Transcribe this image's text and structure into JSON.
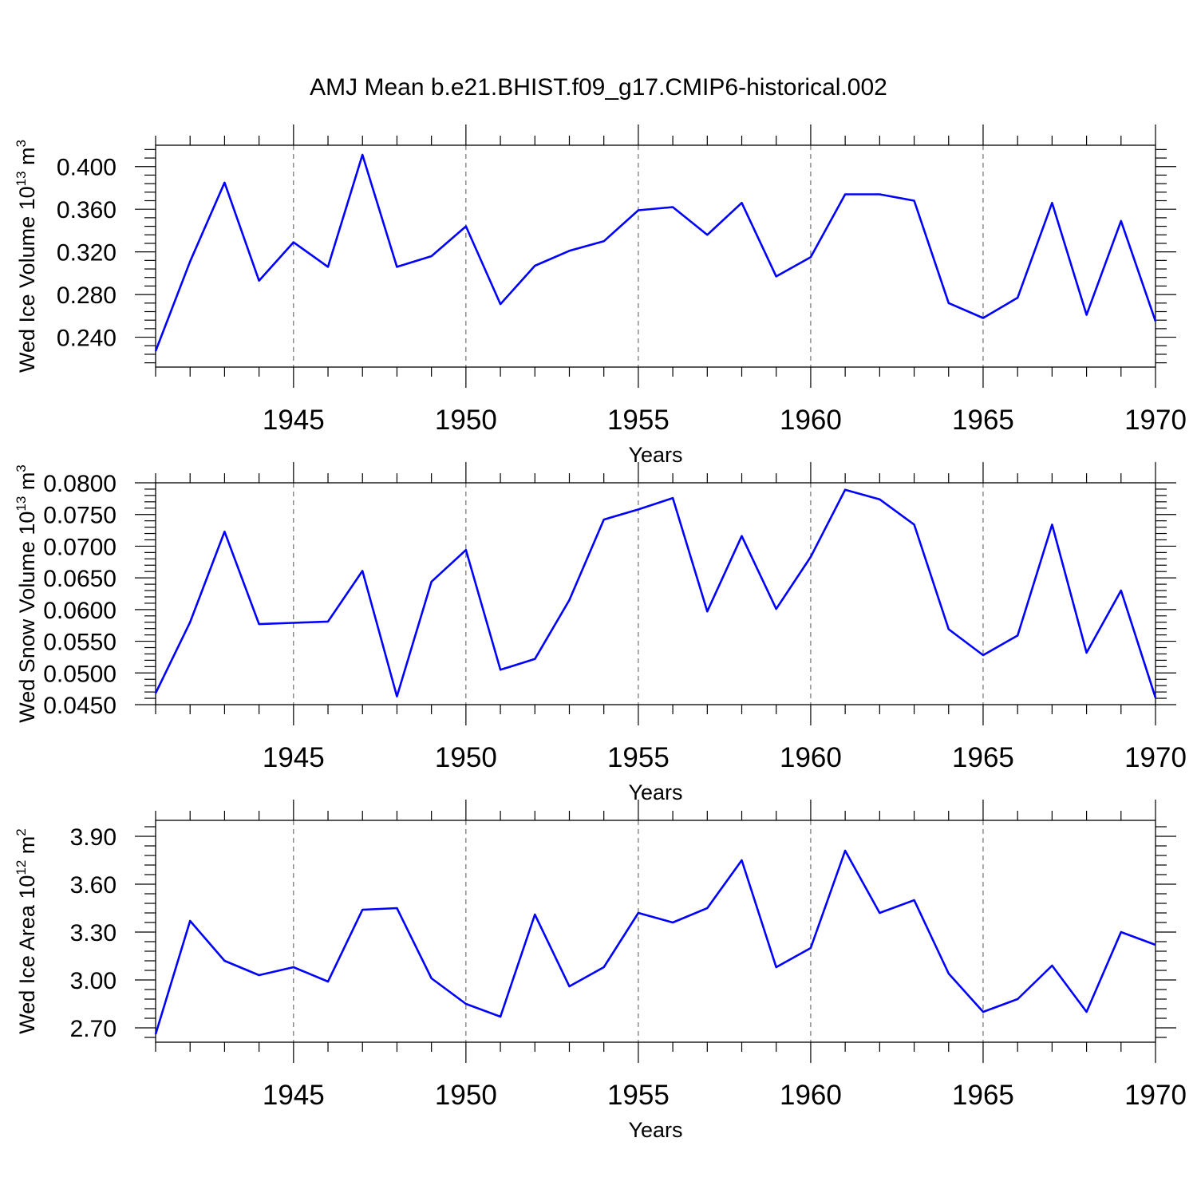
{
  "figure_title": "AMJ Mean b.e21.BHIST.f09_g17.CMIP6-historical.002",
  "colors": {
    "series": "#0000ff",
    "axis": "#000000",
    "grid": "#555555"
  },
  "chart_data": [
    {
      "type": "line",
      "title": "AMJ Mean b.e21.BHIST.f09_g17.CMIP6-historical.002",
      "xlabel": "Years",
      "ylabel_main": "Wed Ice Volume 10",
      "ylabel_exp": "13",
      "ylabel_unit": " m",
      "ylabel_unit_exp": "3",
      "xlim": [
        1941,
        1970
      ],
      "ylim": [
        0.212,
        0.42
      ],
      "xticks": [
        1945,
        1950,
        1955,
        1960,
        1965,
        1970
      ],
      "xtick_labels": [
        "1945",
        "1950",
        "1955",
        "1960",
        "1965",
        "1970"
      ],
      "yticks": [
        0.24,
        0.28,
        0.32,
        0.36,
        0.4
      ],
      "ytick_labels": [
        "0.240",
        "0.280",
        "0.320",
        "0.360",
        "0.400"
      ],
      "grid": "vertical dashed at major x ticks",
      "series": [
        {
          "name": "Wed Ice Volume",
          "x": [
            1941,
            1942,
            1943,
            1944,
            1945,
            1946,
            1947,
            1948,
            1949,
            1950,
            1951,
            1952,
            1953,
            1954,
            1955,
            1956,
            1957,
            1958,
            1959,
            1960,
            1961,
            1962,
            1963,
            1964,
            1965,
            1966,
            1967,
            1968,
            1969,
            1970
          ],
          "values": [
            0.227,
            0.311,
            0.385,
            0.293,
            0.329,
            0.306,
            0.411,
            0.306,
            0.316,
            0.344,
            0.271,
            0.307,
            0.321,
            0.33,
            0.359,
            0.362,
            0.336,
            0.366,
            0.297,
            0.315,
            0.374,
            0.374,
            0.368,
            0.272,
            0.258,
            0.277,
            0.366,
            0.261,
            0.349,
            0.255
          ]
        }
      ]
    },
    {
      "type": "line",
      "title": "",
      "xlabel": "Years",
      "ylabel_main": "Wed Snow Volume 10",
      "ylabel_exp": "13",
      "ylabel_unit": " m",
      "ylabel_unit_exp": "3",
      "xlim": [
        1941,
        1970
      ],
      "ylim": [
        0.045,
        0.08
      ],
      "xticks": [
        1945,
        1950,
        1955,
        1960,
        1965,
        1970
      ],
      "xtick_labels": [
        "1945",
        "1950",
        "1955",
        "1960",
        "1965",
        "1970"
      ],
      "yticks": [
        0.045,
        0.05,
        0.055,
        0.06,
        0.065,
        0.07,
        0.075,
        0.08
      ],
      "ytick_labels": [
        "0.0450",
        "0.0500",
        "0.0550",
        "0.0600",
        "0.0650",
        "0.0700",
        "0.0750",
        "0.0800"
      ],
      "grid": "vertical dashed at major x ticks",
      "series": [
        {
          "name": "Wed Snow Volume",
          "x": [
            1941,
            1942,
            1943,
            1944,
            1945,
            1946,
            1947,
            1948,
            1949,
            1950,
            1951,
            1952,
            1953,
            1954,
            1955,
            1956,
            1957,
            1958,
            1959,
            1960,
            1961,
            1962,
            1963,
            1964,
            1965,
            1966,
            1967,
            1968,
            1969,
            1970
          ],
          "values": [
            0.0468,
            0.058,
            0.0723,
            0.0577,
            0.0579,
            0.0581,
            0.0661,
            0.0463,
            0.0644,
            0.0694,
            0.0505,
            0.0522,
            0.0615,
            0.0742,
            0.0758,
            0.0776,
            0.0597,
            0.0716,
            0.0601,
            0.0683,
            0.0789,
            0.0774,
            0.0734,
            0.0569,
            0.0528,
            0.0559,
            0.0734,
            0.0532,
            0.063,
            0.0461
          ]
        }
      ]
    },
    {
      "type": "line",
      "title": "",
      "xlabel": "Years",
      "ylabel_main": "Wed Ice Area 10",
      "ylabel_exp": "12",
      "ylabel_unit": " m",
      "ylabel_unit_exp": "2",
      "xlim": [
        1941,
        1970
      ],
      "ylim": [
        2.61,
        4.0
      ],
      "xticks": [
        1945,
        1950,
        1955,
        1960,
        1965,
        1970
      ],
      "xtick_labels": [
        "1945",
        "1950",
        "1955",
        "1960",
        "1965",
        "1970"
      ],
      "yticks": [
        2.7,
        3.0,
        3.3,
        3.6,
        3.9
      ],
      "ytick_labels": [
        "2.70",
        "3.00",
        "3.30",
        "3.60",
        "3.90"
      ],
      "grid": "vertical dashed at major x ticks",
      "series": [
        {
          "name": "Wed Ice Area",
          "x": [
            1941,
            1942,
            1943,
            1944,
            1945,
            1946,
            1947,
            1948,
            1949,
            1950,
            1951,
            1952,
            1953,
            1954,
            1955,
            1956,
            1957,
            1958,
            1959,
            1960,
            1961,
            1962,
            1963,
            1964,
            1965,
            1966,
            1967,
            1968,
            1969,
            1970
          ],
          "values": [
            2.66,
            3.37,
            3.12,
            3.03,
            3.08,
            2.99,
            3.44,
            3.45,
            3.01,
            2.85,
            2.77,
            3.41,
            2.96,
            3.08,
            3.42,
            3.36,
            3.45,
            3.75,
            3.08,
            3.2,
            3.81,
            3.42,
            3.5,
            3.04,
            2.8,
            2.88,
            3.09,
            2.8,
            3.3,
            3.22
          ]
        }
      ]
    }
  ]
}
